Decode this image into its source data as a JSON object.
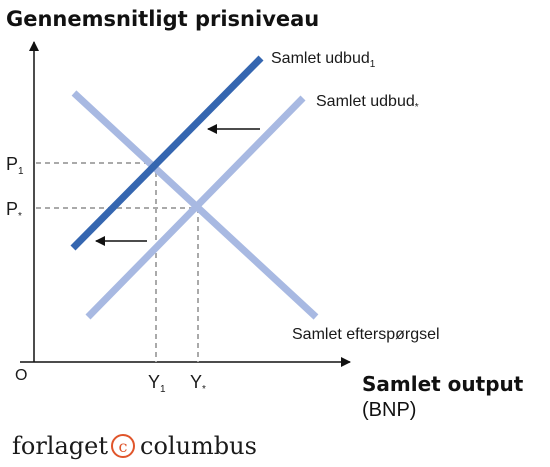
{
  "y_axis_label": "Gennemsnitligt prisniveau",
  "x_axis_label": "Samlet output",
  "x_axis_sublabel": "(BNP)",
  "origin_label": "O",
  "curves": {
    "supply_1": {
      "label": "Samlet udbud",
      "subscript": "1",
      "color": "#3566b0"
    },
    "supply_star": {
      "label": "Samlet udbud",
      "subscript": "*",
      "color": "#a8b9e2"
    },
    "demand": {
      "label": "Samlet efterspørgsel",
      "color": "#a8b9e2"
    }
  },
  "ticks": {
    "p1": {
      "letter": "P",
      "subscript": "1"
    },
    "pstar": {
      "letter": "P",
      "subscript": "*"
    },
    "y1": {
      "letter": "Y",
      "subscript": "1"
    },
    "ystar": {
      "letter": "Y",
      "subscript": "*"
    }
  },
  "brand": {
    "left": "forlaget",
    "symbol": "c",
    "right": "columbus"
  }
}
